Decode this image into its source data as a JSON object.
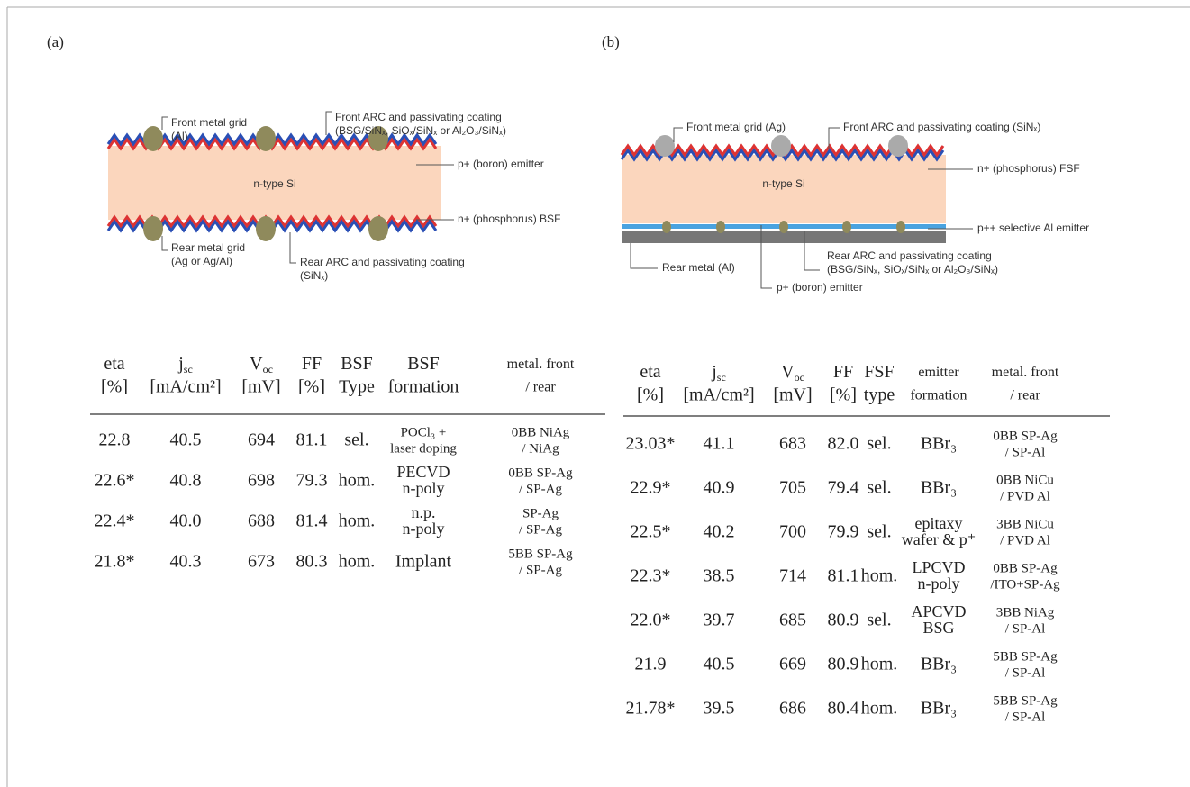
{
  "panels": [
    {
      "label": "(a)",
      "diagram": {
        "front_grid": [
          "Front metal grid",
          "(Al)"
        ],
        "front_arc": [
          "Front ARC and passivating coating",
          "(BSG/SiNₓ, SiOₓ/SiNₓ or Al₂O₃/SiNₓ)"
        ],
        "emitter": [
          "p+ (boron) emitter"
        ],
        "bulk": [
          "n-type Si"
        ],
        "bsf": [
          "n+ (phosphorus) BSF"
        ],
        "rear_grid": [
          "Rear metal grid",
          "(Ag or Ag/Al)"
        ],
        "rear_arc": [
          "Rear ARC and passivating coating",
          "(SiNₓ)"
        ]
      },
      "table": {
        "header": [
          {
            "line1": "eta",
            "line2": "[%]"
          },
          {
            "line1": "j",
            "sub": "sc",
            "line2": "[mA/cm²]"
          },
          {
            "line1": "V",
            "sub": "oc",
            "line2": "[mV]"
          },
          {
            "line1": "FF",
            "line2": "[%]"
          },
          {
            "line1": "BSF",
            "line2": "Type"
          },
          {
            "line1": "BSF",
            "line2": "formation"
          },
          {
            "line1": "metal. front",
            "line2": "/ rear"
          }
        ],
        "rows": [
          [
            "22.8",
            "40.5",
            "694",
            "81.1",
            "sel.",
            [
              "POCl₃ +",
              "laser doping"
            ],
            [
              "0BB NiAg",
              "/ NiAg"
            ]
          ],
          [
            "22.6*",
            "40.8",
            "698",
            "79.3",
            "hom.",
            [
              "PECVD",
              "n-poly"
            ],
            [
              "0BB SP-Ag",
              "/ SP-Ag"
            ]
          ],
          [
            "22.4*",
            "40.0",
            "688",
            "81.4",
            "hom.",
            [
              "n.p.",
              "n-poly"
            ],
            [
              "SP-Ag",
              "/ SP-Ag"
            ]
          ],
          [
            "21.8*",
            "40.3",
            "673",
            "80.3",
            "hom.",
            "Implant",
            [
              "5BB SP-Ag",
              "/ SP-Ag"
            ]
          ]
        ]
      }
    },
    {
      "label": "(b)",
      "diagram": {
        "front_grid": [
          "Front metal grid (Ag)"
        ],
        "front_arc": [
          "Front ARC and passivating coating (SiNₓ)"
        ],
        "fsf": [
          "n+ (phosphorus) FSF"
        ],
        "bulk": [
          "n-type Si"
        ],
        "al_emitter": [
          "p++ selective Al emitter"
        ],
        "rear_metal": [
          "Rear metal (Al)"
        ],
        "rear_arc": [
          "Rear ARC and passivating coating",
          "(BSG/SiNₓ, SiOₓ/SiNₓ or Al₂O₃/SiNₓ)"
        ],
        "emitter": [
          "p+ (boron) emitter"
        ]
      },
      "table": {
        "header": [
          {
            "line1": "eta",
            "line2": "[%]"
          },
          {
            "line1": "j",
            "sub": "sc",
            "line2": "[mA/cm²]"
          },
          {
            "line1": "V",
            "sub": "oc",
            "line2": "[mV]"
          },
          {
            "line1": "FF",
            "line2": "[%]"
          },
          {
            "line1": "FSF",
            "line2": "type"
          },
          {
            "line1": "emitter",
            "line2": "formation"
          },
          {
            "line1": "metal. front",
            "line2": "/ rear"
          }
        ],
        "rows": [
          [
            "23.03*",
            "41.1",
            "683",
            "82.0",
            "sel.",
            "BBr₃",
            [
              "0BB SP-Ag",
              "/ SP-Al"
            ]
          ],
          [
            "22.9*",
            "40.9",
            "705",
            "79.4",
            "sel.",
            "BBr₃",
            [
              "0BB NiCu",
              "/ PVD Al"
            ]
          ],
          [
            "22.5*",
            "40.2",
            "700",
            "79.9",
            "sel.",
            [
              "epitaxy",
              "wafer & p⁺"
            ],
            [
              "3BB NiCu",
              "/ PVD Al"
            ]
          ],
          [
            "22.3*",
            "38.5",
            "714",
            "81.1",
            "hom.",
            [
              "LPCVD",
              "n-poly"
            ],
            [
              "0BB SP-Ag",
              "/ITO+SP-Ag"
            ]
          ],
          [
            "22.0*",
            "39.7",
            "685",
            "80.9",
            "sel.",
            [
              "APCVD",
              "BSG"
            ],
            [
              "3BB NiAg",
              "/ SP-Al"
            ]
          ],
          [
            "21.9",
            "40.5",
            "669",
            "80.9",
            "hom.",
            "BBr₃",
            [
              "5BB SP-Ag",
              "/ SP-Al"
            ]
          ],
          [
            "21.78*",
            "39.5",
            "686",
            "80.4",
            "hom.",
            "BBr₃",
            [
              "5BB SP-Ag",
              "/ SP-Al"
            ]
          ]
        ]
      }
    }
  ]
}
